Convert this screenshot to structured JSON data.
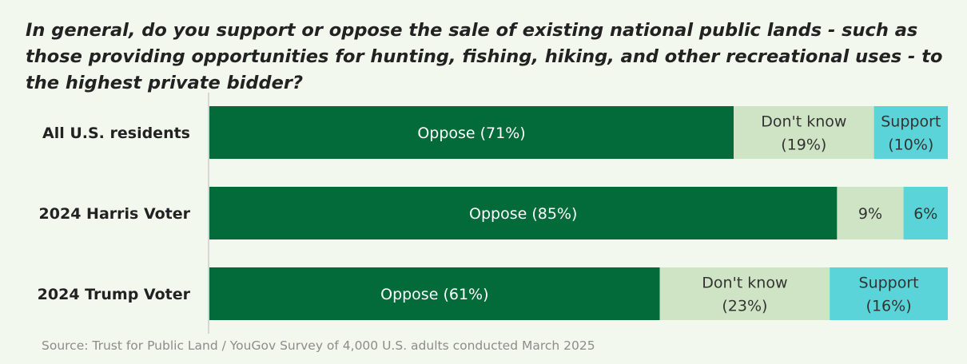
{
  "title": "In general, do you support or oppose the sale of existing national public lands - such as those providing opportunities for hunting, fishing, hiking, and other recreational uses - to the highest private bidder?",
  "source": "Source: Trust for Public Land / YouGov Survey of 4,000 U.S. adults conducted March 2025",
  "colors": {
    "oppose": "#036b3a",
    "dont_know": "#cfe4c5",
    "support": "#5ad4d8",
    "oppose_text": "#ffffff",
    "other_text": "#333333",
    "axis": "#cccccc",
    "background": "#f3f8ef"
  },
  "chart_data": {
    "type": "bar",
    "orientation": "horizontal",
    "stacked": true,
    "categories": [
      "All U.S. residents",
      "2024 Harris Voter",
      "2024 Trump Voter"
    ],
    "series": [
      {
        "name": "Oppose",
        "values": [
          71,
          85,
          61
        ],
        "color": "#036b3a"
      },
      {
        "name": "Don't know",
        "values": [
          19,
          9,
          23
        ],
        "color": "#cfe4c5"
      },
      {
        "name": "Support",
        "values": [
          10,
          6,
          16
        ],
        "color": "#5ad4d8"
      }
    ],
    "segment_labels": [
      [
        [
          "Oppose (71%)"
        ],
        [
          "Don't know",
          "(19%)"
        ],
        [
          "Support",
          "(10%)"
        ]
      ],
      [
        [
          "Oppose (85%)"
        ],
        [
          "9%"
        ],
        [
          "6%"
        ]
      ],
      [
        [
          "Oppose (61%)"
        ],
        [
          "Don't know",
          "(23%)"
        ],
        [
          "Support",
          "(16%)"
        ]
      ]
    ],
    "xlim": [
      0,
      100
    ],
    "legend": "none"
  }
}
